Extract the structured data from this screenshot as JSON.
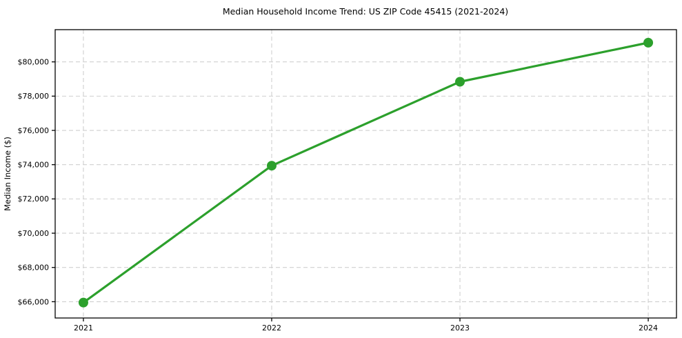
{
  "chart_data": {
    "type": "line",
    "title": "Median Household Income Trend: US ZIP Code 45415 (2021-2024)",
    "xlabel": "",
    "ylabel": "Median Income ($)",
    "x": [
      2021,
      2022,
      2023,
      2024
    ],
    "x_tick_labels": [
      "2021",
      "2022",
      "2023",
      "2024"
    ],
    "values": [
      65950,
      73940,
      78840,
      81120
    ],
    "yticks": [
      66000,
      68000,
      70000,
      72000,
      74000,
      76000,
      78000,
      80000
    ],
    "ytick_labels": [
      "$66,000",
      "$68,000",
      "$70,000",
      "$72,000",
      "$74,000",
      "$76,000",
      "$78,000",
      "$80,000"
    ],
    "xlim": [
      2020.85,
      2024.15
    ],
    "ylim": [
      65050,
      81880
    ],
    "grid": true,
    "grid_style": "dashed",
    "legend": "none",
    "marker": "circle",
    "line_color": "#2ca02c",
    "grid_color": "#cfcfcf",
    "axis_color": "#000000",
    "text_color": "#000000",
    "background_color": "#ffffff"
  }
}
